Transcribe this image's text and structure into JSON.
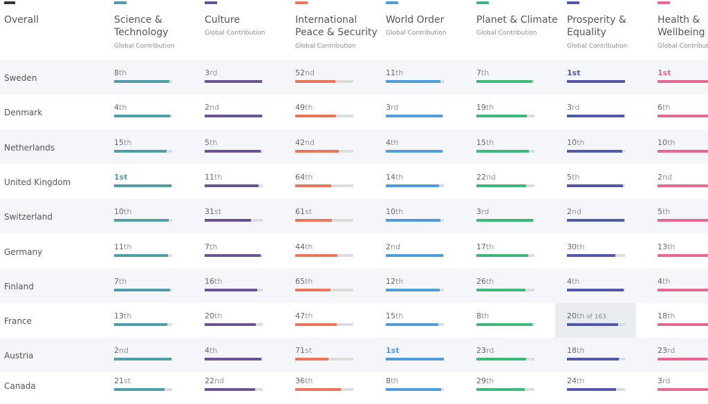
{
  "overall_label": "Overall",
  "categories": [
    {
      "key": "sci",
      "title_lines": [
        "Science &",
        "Technology"
      ],
      "subtitle": "Global Contribution",
      "color": "#4f9da6"
    },
    {
      "key": "cul",
      "title_lines": [
        "Culture"
      ],
      "subtitle": "Global Contribution",
      "color": "#6a5395"
    },
    {
      "key": "ips",
      "title_lines": [
        "International",
        "Peace & Security"
      ],
      "subtitle": "Global Contribution",
      "color": "#ee7457"
    },
    {
      "key": "wo",
      "title_lines": [
        "World Order"
      ],
      "subtitle": "Global Contribution",
      "color": "#4e9cdb"
    },
    {
      "key": "pc",
      "title_lines": [
        "Planet & Climate"
      ],
      "subtitle": "Global Contribution",
      "color": "#3cb978"
    },
    {
      "key": "pe",
      "title_lines": [
        "Prosperity &",
        "Equality"
      ],
      "subtitle": "Global Contribution",
      "color": "#5158ab"
    },
    {
      "key": "hw",
      "title_lines": [
        "Health &",
        "Wellbeing"
      ],
      "subtitle": "Global Contributi",
      "color": "#e96690"
    }
  ],
  "rows": [
    {
      "country": "Sweden",
      "ranks": [
        {
          "num": "8",
          "suf": "th",
          "fill": 0.95
        },
        {
          "num": "3",
          "suf": "rd",
          "fill": 0.99
        },
        {
          "num": "52",
          "suf": "nd",
          "fill": 0.69
        },
        {
          "num": "11",
          "suf": "th",
          "fill": 0.94
        },
        {
          "num": "7",
          "suf": "th",
          "fill": 0.96
        },
        {
          "num": "1",
          "suf": "st",
          "fill": 1.0
        },
        {
          "num": "1",
          "suf": "st",
          "fill": 1.0
        }
      ]
    },
    {
      "country": "Denmark",
      "ranks": [
        {
          "num": "4",
          "suf": "th",
          "fill": 0.97
        },
        {
          "num": "2",
          "suf": "nd",
          "fill": 0.99
        },
        {
          "num": "49",
          "suf": "th",
          "fill": 0.7
        },
        {
          "num": "3",
          "suf": "rd",
          "fill": 0.98
        },
        {
          "num": "19",
          "suf": "th",
          "fill": 0.87
        },
        {
          "num": "3",
          "suf": "rd",
          "fill": 0.99
        },
        {
          "num": "6",
          "suf": "th",
          "fill": 0.97
        }
      ]
    },
    {
      "country": "Netherlands",
      "ranks": [
        {
          "num": "15",
          "suf": "th",
          "fill": 0.91
        },
        {
          "num": "5",
          "suf": "th",
          "fill": 0.97
        },
        {
          "num": "42",
          "suf": "nd",
          "fill": 0.75
        },
        {
          "num": "4",
          "suf": "th",
          "fill": 0.98
        },
        {
          "num": "15",
          "suf": "th",
          "fill": 0.9
        },
        {
          "num": "10",
          "suf": "th",
          "fill": 0.95
        },
        {
          "num": "10",
          "suf": "th",
          "fill": 0.94
        }
      ]
    },
    {
      "country": "United Kingdom",
      "ranks": [
        {
          "num": "1",
          "suf": "st",
          "fill": 0.99
        },
        {
          "num": "11",
          "suf": "th",
          "fill": 0.93
        },
        {
          "num": "64",
          "suf": "th",
          "fill": 0.62
        },
        {
          "num": "14",
          "suf": "th",
          "fill": 0.92
        },
        {
          "num": "22",
          "suf": "nd",
          "fill": 0.86
        },
        {
          "num": "5",
          "suf": "th",
          "fill": 0.97
        },
        {
          "num": "2",
          "suf": "nd",
          "fill": 0.99
        }
      ]
    },
    {
      "country": "Switzerland",
      "ranks": [
        {
          "num": "10",
          "suf": "th",
          "fill": 0.94
        },
        {
          "num": "31",
          "suf": "st",
          "fill": 0.8
        },
        {
          "num": "61",
          "suf": "st",
          "fill": 0.63
        },
        {
          "num": "10",
          "suf": "th",
          "fill": 0.94
        },
        {
          "num": "3",
          "suf": "rd",
          "fill": 0.98
        },
        {
          "num": "2",
          "suf": "nd",
          "fill": 0.99
        },
        {
          "num": "5",
          "suf": "th",
          "fill": 0.97
        }
      ]
    },
    {
      "country": "Germany",
      "ranks": [
        {
          "num": "11",
          "suf": "th",
          "fill": 0.93
        },
        {
          "num": "7",
          "suf": "th",
          "fill": 0.96
        },
        {
          "num": "44",
          "suf": "th",
          "fill": 0.73
        },
        {
          "num": "2",
          "suf": "nd",
          "fill": 0.99
        },
        {
          "num": "17",
          "suf": "th",
          "fill": 0.89
        },
        {
          "num": "30",
          "suf": "th",
          "fill": 0.83
        },
        {
          "num": "13",
          "suf": "th",
          "fill": 0.93
        }
      ]
    },
    {
      "country": "Finland",
      "ranks": [
        {
          "num": "7",
          "suf": "th",
          "fill": 0.96
        },
        {
          "num": "16",
          "suf": "th",
          "fill": 0.9
        },
        {
          "num": "65",
          "suf": "th",
          "fill": 0.61
        },
        {
          "num": "12",
          "suf": "th",
          "fill": 0.93
        },
        {
          "num": "26",
          "suf": "th",
          "fill": 0.84
        },
        {
          "num": "4",
          "suf": "th",
          "fill": 0.98
        },
        {
          "num": "4",
          "suf": "th",
          "fill": 0.98
        }
      ]
    },
    {
      "country": "France",
      "ranks": [
        {
          "num": "13",
          "suf": "th",
          "fill": 0.92
        },
        {
          "num": "20",
          "suf": "th",
          "fill": 0.88
        },
        {
          "num": "47",
          "suf": "th",
          "fill": 0.71
        },
        {
          "num": "15",
          "suf": "th",
          "fill": 0.91
        },
        {
          "num": "8",
          "suf": "th",
          "fill": 0.96
        },
        {
          "num": "20",
          "suf": "th",
          "of": "of 163",
          "fill": 0.88,
          "highlight": true
        },
        {
          "num": "18",
          "suf": "th",
          "fill": 0.9
        }
      ]
    },
    {
      "country": "Austria",
      "ranks": [
        {
          "num": "2",
          "suf": "nd",
          "fill": 0.99
        },
        {
          "num": "4",
          "suf": "th",
          "fill": 0.98
        },
        {
          "num": "71",
          "suf": "st",
          "fill": 0.57
        },
        {
          "num": "1",
          "suf": "st",
          "fill": 1.0
        },
        {
          "num": "23",
          "suf": "rd",
          "fill": 0.86
        },
        {
          "num": "18",
          "suf": "th",
          "fill": 0.89
        },
        {
          "num": "23",
          "suf": "rd",
          "fill": 0.86
        }
      ]
    },
    {
      "country": "Canada",
      "ranks": [
        {
          "num": "21",
          "suf": "st",
          "fill": 0.87
        },
        {
          "num": "22",
          "suf": "nd",
          "fill": 0.87
        },
        {
          "num": "36",
          "suf": "th",
          "fill": 0.78
        },
        {
          "num": "8",
          "suf": "th",
          "fill": 0.95
        },
        {
          "num": "29",
          "suf": "th",
          "fill": 0.83
        },
        {
          "num": "24",
          "suf": "th",
          "fill": 0.85
        },
        {
          "num": "3",
          "suf": "rd",
          "fill": 0.98
        }
      ]
    }
  ]
}
